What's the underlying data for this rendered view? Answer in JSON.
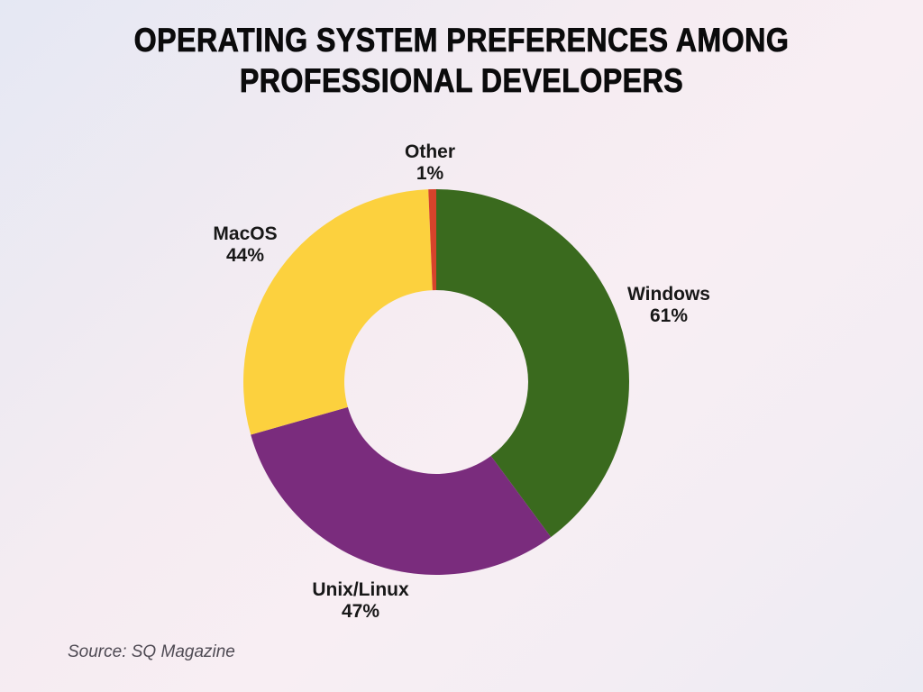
{
  "title": {
    "line1": "OPERATING SYSTEM PREFERENCES AMONG",
    "line2": "PROFESSIONAL DEVELOPERS"
  },
  "source": "Source: SQ Magazine",
  "chart_data": {
    "type": "pie",
    "subtype": "donut",
    "title": "Operating System Preferences Among Professional Developers",
    "categories": [
      "Windows",
      "Unix/Linux",
      "MacOS",
      "Other"
    ],
    "values": [
      61,
      47,
      44,
      1
    ],
    "unit": "%",
    "direction": "clockwise",
    "start_angle_deg": 0,
    "legend_position": "labels-around",
    "segments": [
      {
        "label": "Windows",
        "value": 61,
        "display": "61%",
        "color": "#3a6a1e"
      },
      {
        "label": "Unix/Linux",
        "value": 47,
        "display": "47%",
        "color": "#7a2c7d"
      },
      {
        "label": "MacOS",
        "value": 44,
        "display": "44%",
        "color": "#fcd13e"
      },
      {
        "label": "Other",
        "value": 1,
        "display": "1%",
        "color": "#d7432b"
      }
    ]
  }
}
